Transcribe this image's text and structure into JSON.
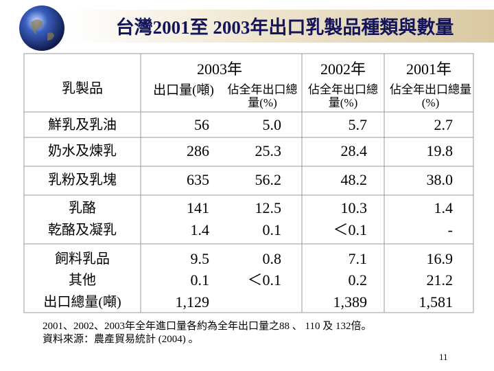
{
  "header": {
    "title": "台灣2001至 2003年出口乳製品種類與數量"
  },
  "table": {
    "year_headers": [
      "2003年",
      "2002年",
      "2001年"
    ],
    "columns": [
      "乳製品",
      "出口量(噸)",
      "佔全年出口總量(%)",
      "佔全年出口總量(%)",
      "佔全年出口總量(%)"
    ],
    "rows": [
      [
        "鮮乳及乳油",
        "56",
        "5.0",
        "5.7",
        "2.7"
      ],
      [
        "奶水及煉乳",
        "286",
        "25.3",
        "28.4",
        "19.8"
      ],
      [
        "乳粉及乳塊",
        "635",
        "56.2",
        "48.2",
        "38.0"
      ],
      [
        "乳酪",
        "141",
        "12.5",
        "10.3",
        "1.4"
      ],
      [
        "乾酪及凝乳",
        "1.4",
        "0.1",
        "＜0.1",
        "-"
      ],
      [
        "飼料乳品",
        "9.5",
        "0.8",
        "7.1",
        "16.9"
      ],
      [
        "其他",
        "0.1",
        "＜0.1",
        "0.2",
        "21.2"
      ],
      [
        "出口總量(噸)",
        "1,129",
        null,
        "1,389",
        "1,581"
      ]
    ]
  },
  "footnotes": [
    "2001、2002、2003年全年進口量各約為全年出口量之88 、 110 及 132倍。",
    "資料來源：農產貿易統計 (2004) 。"
  ],
  "page_number": "11"
}
